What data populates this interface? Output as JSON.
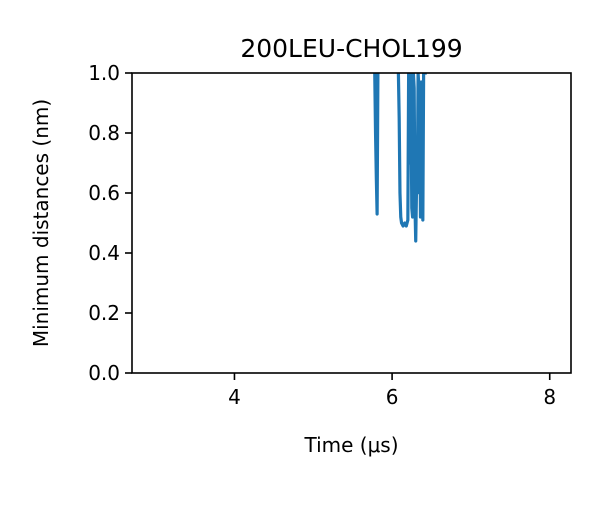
{
  "chart_data": {
    "type": "line",
    "title": "200LEU-CHOL199",
    "xlabel": "Time (μs)",
    "ylabel": "Minimum distances (nm)",
    "xlim": [
      2.7,
      8.27
    ],
    "ylim": [
      0.0,
      1.0
    ],
    "grid": false,
    "xticks": [
      4,
      6,
      8
    ],
    "xtick_labels": [
      "4",
      "6",
      "8"
    ],
    "yticks": [
      0.0,
      0.2,
      0.4,
      0.6,
      0.8,
      1.0
    ],
    "ytick_labels": [
      "0.0",
      "0.2",
      "0.4",
      "0.6",
      "0.8",
      "1.0"
    ],
    "series": [
      {
        "color": "#1f77b4",
        "x": [
          5.78,
          5.79,
          5.8,
          5.81,
          5.82,
          null,
          6.08,
          6.09,
          6.1,
          6.11,
          6.12,
          6.14,
          6.16,
          6.18,
          6.2,
          6.21,
          6.22,
          6.23,
          6.24,
          6.25,
          6.26,
          6.27,
          6.28,
          6.29,
          6.3,
          6.31,
          6.32,
          6.33,
          6.34,
          6.35,
          6.36,
          6.37,
          6.38,
          6.39,
          6.4,
          6.41,
          6.42
        ],
        "y": [
          1.0,
          0.8,
          0.65,
          0.53,
          1.0,
          null,
          1.0,
          0.85,
          0.6,
          0.52,
          0.5,
          0.49,
          0.5,
          0.49,
          0.51,
          1.0,
          0.7,
          1.0,
          0.9,
          0.55,
          0.52,
          1.0,
          0.95,
          0.56,
          0.44,
          0.62,
          0.6,
          1.0,
          0.95,
          0.9,
          0.52,
          0.97,
          0.7,
          0.51,
          1.0,
          1.0,
          1.0
        ]
      }
    ]
  }
}
